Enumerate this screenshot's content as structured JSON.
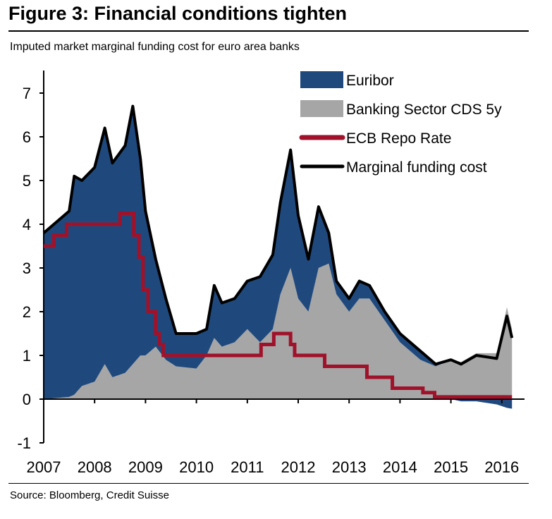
{
  "title": "Figure 3: Financial conditions tighten",
  "subtitle": "Imputed market marginal funding cost for euro area banks",
  "source": "Source: Bloomberg, Credit Suisse",
  "chart_data": {
    "type": "area",
    "title": "Figure 3: Financial conditions tighten",
    "xlabel": "",
    "ylabel": "",
    "xlim": [
      2007,
      2016.3
    ],
    "ylim": [
      -1,
      7.5
    ],
    "x_ticks": [
      "2007",
      "2008",
      "2009",
      "2010",
      "2011",
      "2012",
      "2013",
      "2014",
      "2015",
      "2016"
    ],
    "y_ticks": [
      "-1",
      "0",
      "1",
      "2",
      "3",
      "4",
      "5",
      "6",
      "7"
    ],
    "legend": [
      "Euribor",
      "Banking Sector CDS 5y",
      "ECB Repo Rate",
      "Marginal funding cost"
    ],
    "legend_position": "top-right",
    "colors": {
      "euribor": "#1f497d",
      "cds": "#a6a6a6",
      "repo": "#a0122a",
      "total": "#000000"
    },
    "x": [
      2007.0,
      2007.5,
      2007.6,
      2007.75,
      2008.0,
      2008.2,
      2008.35,
      2008.6,
      2008.75,
      2008.9,
      2009.0,
      2009.2,
      2009.4,
      2009.6,
      2010.0,
      2010.2,
      2010.35,
      2010.5,
      2010.75,
      2011.0,
      2011.25,
      2011.5,
      2011.65,
      2011.85,
      2012.0,
      2012.2,
      2012.4,
      2012.6,
      2012.75,
      2013.0,
      2013.2,
      2013.4,
      2013.7,
      2014.0,
      2014.4,
      2014.7,
      2015.0,
      2015.2,
      2015.5,
      2015.9,
      2016.1,
      2016.2
    ],
    "series": [
      {
        "name": "Banking Sector CDS 5y",
        "values": [
          0.0,
          0.05,
          0.1,
          0.3,
          0.4,
          0.8,
          0.5,
          0.6,
          0.8,
          1.0,
          1.0,
          1.2,
          0.9,
          0.75,
          0.7,
          1.0,
          1.4,
          1.2,
          1.3,
          1.6,
          1.3,
          1.6,
          2.4,
          3.0,
          2.3,
          2.0,
          3.0,
          3.1,
          2.4,
          2.0,
          2.3,
          2.3,
          1.8,
          1.3,
          0.9,
          0.75,
          0.9,
          0.85,
          1.05,
          1.05,
          2.1,
          1.6
        ]
      },
      {
        "name": "Euribor",
        "values": [
          3.8,
          4.25,
          5.0,
          4.7,
          4.9,
          5.4,
          4.9,
          5.2,
          5.9,
          4.5,
          3.3,
          2.0,
          1.4,
          0.75,
          0.8,
          0.6,
          1.2,
          1.0,
          1.0,
          1.1,
          1.5,
          1.7,
          2.1,
          2.7,
          1.9,
          1.2,
          1.4,
          0.7,
          0.3,
          0.3,
          0.4,
          0.3,
          0.2,
          0.2,
          0.2,
          0.05,
          0.0,
          -0.05,
          -0.05,
          -0.12,
          -0.2,
          -0.22
        ]
      },
      {
        "name": "Marginal funding cost",
        "values": [
          3.8,
          4.3,
          5.1,
          5.0,
          5.3,
          6.2,
          5.4,
          5.8,
          6.7,
          5.5,
          4.3,
          3.2,
          2.3,
          1.5,
          1.5,
          1.6,
          2.6,
          2.2,
          2.3,
          2.7,
          2.8,
          3.3,
          4.5,
          5.7,
          4.2,
          3.2,
          4.4,
          3.8,
          2.7,
          2.3,
          2.7,
          2.6,
          2.0,
          1.5,
          1.1,
          0.8,
          0.9,
          0.8,
          1.0,
          0.93,
          1.9,
          1.4
        ]
      }
    ],
    "repo_steps": [
      [
        2007.0,
        3.5
      ],
      [
        2007.2,
        3.75
      ],
      [
        2007.45,
        4.0
      ],
      [
        2008.5,
        4.25
      ],
      [
        2008.77,
        3.75
      ],
      [
        2008.87,
        3.25
      ],
      [
        2008.95,
        2.5
      ],
      [
        2009.05,
        2.0
      ],
      [
        2009.2,
        1.5
      ],
      [
        2009.27,
        1.25
      ],
      [
        2009.35,
        1.0
      ],
      [
        2011.27,
        1.25
      ],
      [
        2011.52,
        1.5
      ],
      [
        2011.85,
        1.25
      ],
      [
        2011.93,
        1.0
      ],
      [
        2012.52,
        0.75
      ],
      [
        2013.35,
        0.5
      ],
      [
        2013.85,
        0.25
      ],
      [
        2014.45,
        0.15
      ],
      [
        2014.68,
        0.05
      ],
      [
        2016.2,
        0.05
      ]
    ]
  }
}
